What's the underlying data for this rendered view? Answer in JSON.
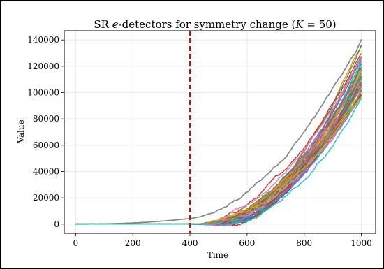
{
  "chart_data": {
    "type": "line",
    "title_prefix": "SR ",
    "title_italic": "e",
    "title_suffix": "-detectors for symmetry change (",
    "title_k_italic": "K",
    "title_k_value": " = 50)",
    "xlabel": "Time",
    "ylabel": "Value",
    "xlim": [
      -40,
      1050
    ],
    "ylim": [
      -7000,
      147000
    ],
    "x_ticks": [
      0,
      200,
      400,
      600,
      800,
      1000
    ],
    "x_tick_labels": [
      "0",
      "200",
      "400",
      "600",
      "800",
      "1000"
    ],
    "y_ticks": [
      0,
      20000,
      40000,
      60000,
      80000,
      100000,
      120000,
      140000
    ],
    "y_tick_labels": [
      "0",
      "20000",
      "40000",
      "60000",
      "80000",
      "100000",
      "120000",
      "140000"
    ],
    "grid": true,
    "changepoint": {
      "x": 400,
      "style": "dashed",
      "color": "#e00000"
    },
    "num_series": 50,
    "series_summary": {
      "pre_change_value": 0,
      "final_value_range_at_1000": [
        94000,
        139000
      ],
      "outlier_series_value_at_400": 4500
    },
    "series_end_values": [
      139000,
      136000,
      134000,
      131000,
      129000,
      127000,
      125000,
      124000,
      123000,
      122000,
      121000,
      120000,
      119000,
      118000,
      117000,
      116500,
      116000,
      115000,
      114500,
      114000,
      113000,
      112500,
      112000,
      111000,
      110500,
      110000,
      109500,
      109000,
      108000,
      107500,
      107000,
      106500,
      106000,
      105000,
      104500,
      104000,
      103500,
      103000,
      102000,
      101500,
      101000,
      100500,
      100000,
      99500,
      99000,
      98000,
      97500,
      97000,
      96000,
      94000
    ],
    "colors": [
      "#1f77b4",
      "#ff7f0e",
      "#2ca02c",
      "#d62728",
      "#9467bd",
      "#8c564b",
      "#e377c2",
      "#7f7f7f",
      "#bcbd22",
      "#17becf"
    ]
  }
}
